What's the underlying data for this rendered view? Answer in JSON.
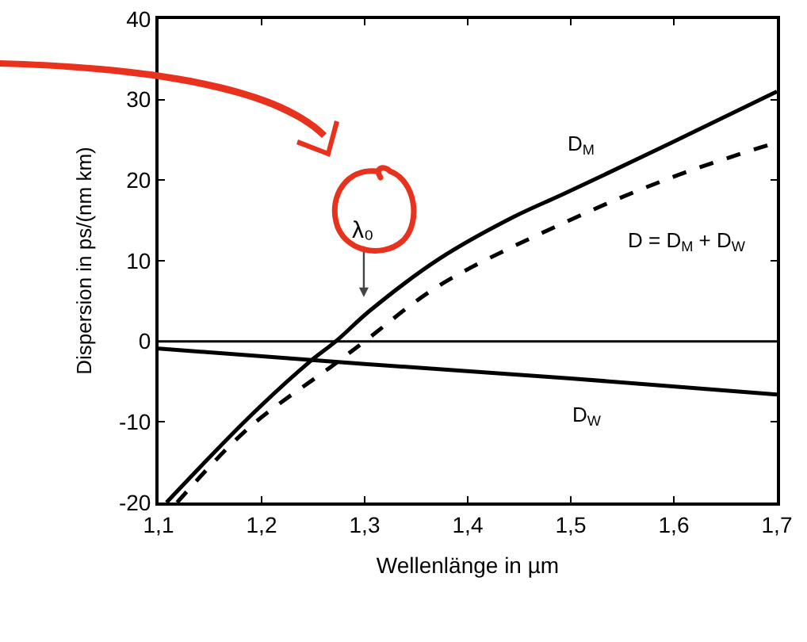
{
  "chart_data": {
    "type": "line",
    "xlabel": "Wellenlänge in µm",
    "ylabel": "Dispersion in ps/(nm km)",
    "xlim": [
      1.1,
      1.7
    ],
    "ylim": [
      -20,
      40
    ],
    "xticks": [
      {
        "value": 1.1,
        "label": "1,1"
      },
      {
        "value": 1.2,
        "label": "1,2"
      },
      {
        "value": 1.3,
        "label": "1,3"
      },
      {
        "value": 1.4,
        "label": "1,4"
      },
      {
        "value": 1.5,
        "label": "1,5"
      },
      {
        "value": 1.6,
        "label": "1,6"
      },
      {
        "value": 1.7,
        "label": "1,7"
      }
    ],
    "yticks": [
      -20,
      -10,
      0,
      10,
      20,
      30,
      40
    ],
    "grid": false,
    "legend": false,
    "marker": "none",
    "series": [
      {
        "name": "D$_{M}$",
        "color": "#000000",
        "line_style": "solid",
        "x": [
          1.1077,
          1.1872,
          1.246,
          1.272,
          1.305,
          1.372,
          1.444,
          1.495,
          1.597,
          1.7
        ],
        "values": [
          -20,
          -9.5,
          -2.6,
          0,
          3.8,
          10.2,
          15.4,
          18.4,
          24.6,
          31.0
        ]
      },
      {
        "name": "D = D$_{M}$ + D$_{W}$",
        "color": "#000000",
        "line_style": "dashed",
        "x": [
          1.118,
          1.187,
          1.269,
          1.3,
          1.372,
          1.495,
          1.597,
          1.7
        ],
        "values": [
          -20,
          -10.8,
          -3,
          0,
          6.9,
          14.8,
          20.3,
          24.7
        ]
      },
      {
        "name": "D$_{W}$",
        "color": "#000000",
        "line_style": "solid",
        "x": [
          1.1,
          1.3,
          1.5,
          1.7
        ],
        "values": [
          -0.9,
          -2.8,
          -4.6,
          -6.6
        ]
      }
    ],
    "ref_lines": [
      {
        "axis": "y",
        "value": 0,
        "color": "#000000",
        "line_style": "solid"
      }
    ],
    "annotations": [
      "λ₀"
    ]
  }
}
